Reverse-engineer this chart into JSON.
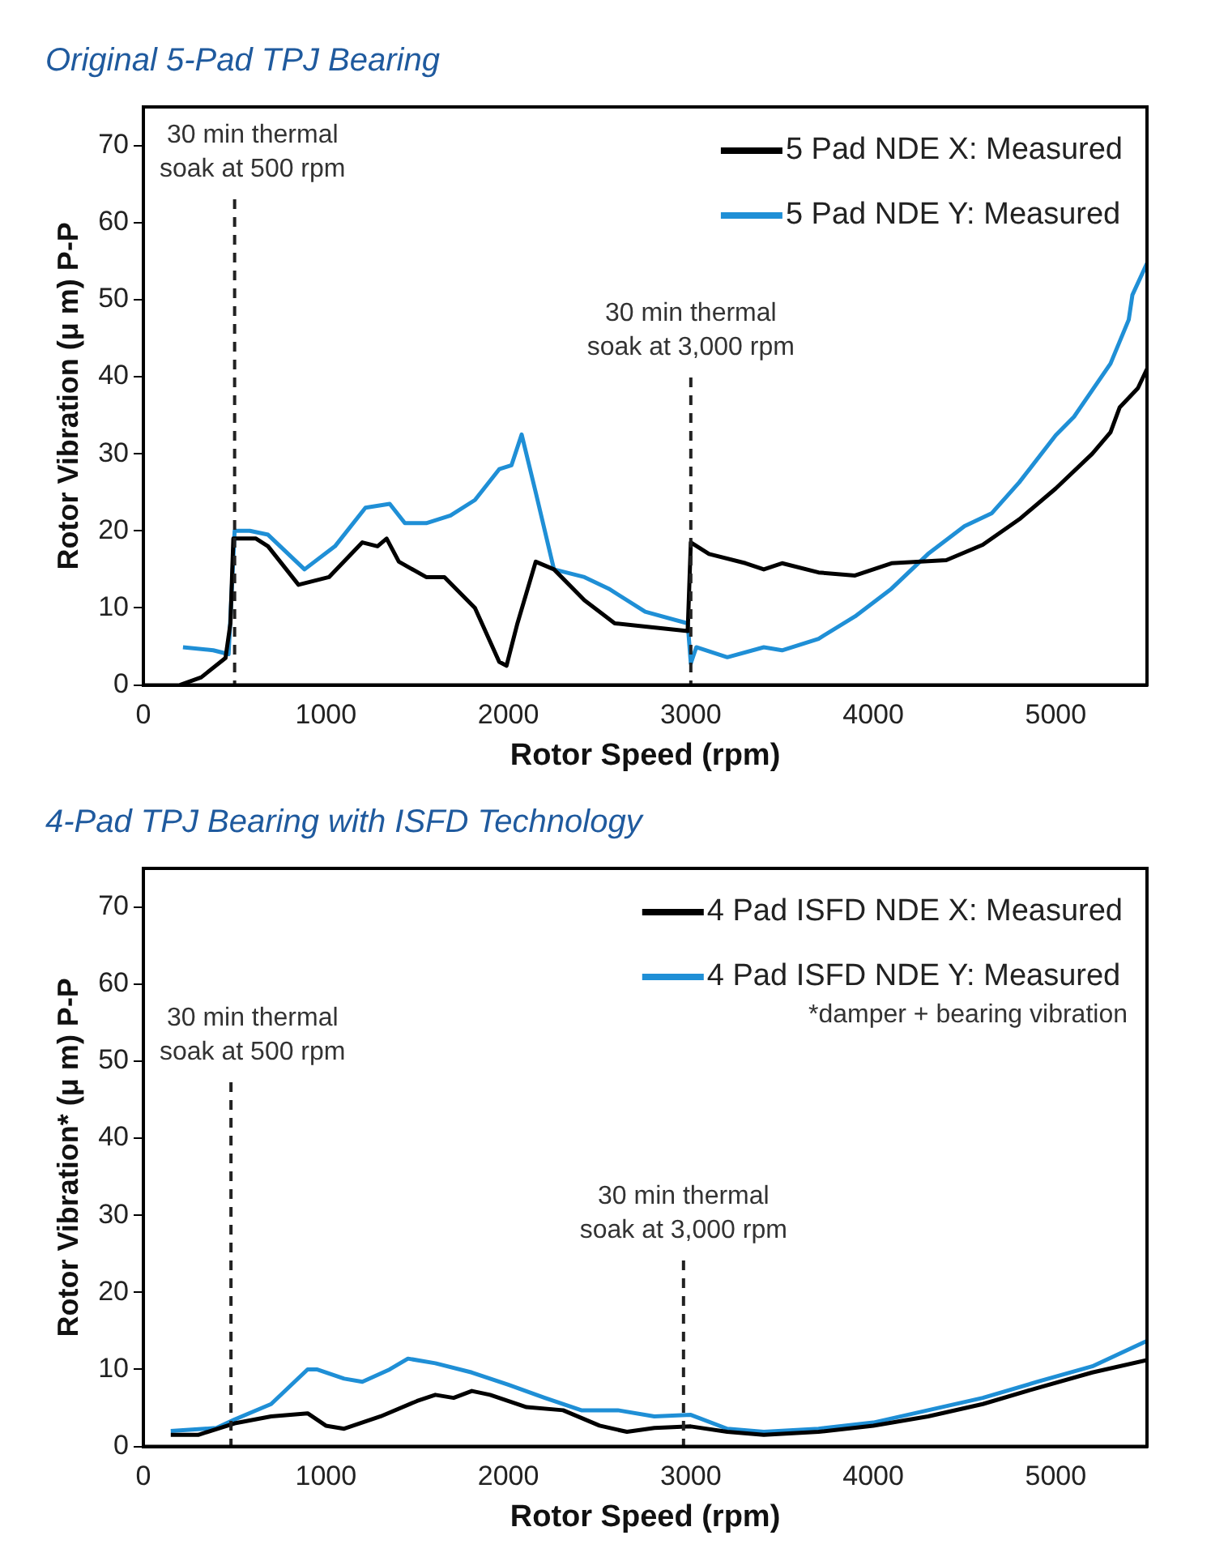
{
  "chart_data": [
    {
      "type": "line",
      "title": "Original 5-Pad TPJ Bearing",
      "xlabel": "Rotor Speed (rpm)",
      "ylabel": "Rotor Vibration (μ m) P-P",
      "xlim": [
        0,
        5500
      ],
      "xticks": [
        0,
        1000,
        2000,
        3000,
        4000,
        5000
      ],
      "ylim": [
        0,
        75
      ],
      "yticks": [
        0,
        10,
        20,
        30,
        40,
        50,
        60,
        70
      ],
      "grid": false,
      "legend": "top right",
      "marker": "none",
      "line_style": "solid",
      "ref_lines": [
        {
          "axis": "x",
          "value": 500,
          "label": "30 min thermal\nsoak at 500 rpm",
          "color": "#222222",
          "line_style": "dashed"
        },
        {
          "axis": "x",
          "value": 3000,
          "label": "30 min thermal\nsoak at 3,000 rpm",
          "color": "#222222",
          "line_style": "dashed"
        }
      ],
      "series": [
        {
          "name": "5 Pad NDE X: Measured",
          "color": "#000000",
          "x": [
            200,
            317,
            450,
            477,
            493,
            617,
            683,
            850,
            1017,
            1200,
            1283,
            1333,
            1400,
            1550,
            1650,
            1817,
            1950,
            1990,
            2050,
            2150,
            2250,
            2417,
            2583,
            2783,
            2983,
            3000,
            3100,
            3300,
            3400,
            3500,
            3700,
            3900,
            4100,
            4400,
            4600,
            4800,
            5000,
            5200,
            5300,
            5350,
            5450,
            5500
          ],
          "values": [
            0,
            1,
            3.5,
            8,
            19,
            19,
            18,
            13,
            14,
            18.5,
            18,
            19,
            16,
            14,
            14,
            10,
            3,
            2.5,
            8,
            16,
            15,
            11,
            8,
            7.5,
            7,
            18.5,
            17,
            15.8,
            15,
            15.8,
            14.6,
            14.2,
            15.8,
            16.2,
            18.2,
            21.5,
            25.5,
            30,
            32.8,
            36,
            38.5,
            41
          ]
        },
        {
          "name": "5 Pad NDE Y: Measured",
          "color": "#1f8fd6",
          "x": [
            217,
            383,
            467,
            500,
            583,
            683,
            883,
            1050,
            1217,
            1350,
            1433,
            1550,
            1683,
            1817,
            1950,
            2017,
            2073,
            2150,
            2250,
            2417,
            2550,
            2750,
            2983,
            3000,
            3030,
            3200,
            3400,
            3500,
            3700,
            3900,
            4100,
            4300,
            4500,
            4650,
            4800,
            5000,
            5100,
            5300,
            5400,
            5420,
            5500
          ],
          "values": [
            4.9,
            4.5,
            4,
            20,
            20,
            19.5,
            15,
            18,
            23,
            23.5,
            21,
            21,
            22,
            24,
            28,
            28.5,
            32.5,
            25,
            15,
            14,
            12.5,
            9.5,
            8,
            2.8,
            4.9,
            3.6,
            4.9,
            4.5,
            6,
            8.9,
            12.5,
            17,
            20.6,
            22.3,
            26.3,
            32.4,
            34.8,
            41.7,
            47.4,
            50.6,
            54.7
          ]
        }
      ]
    },
    {
      "type": "line",
      "title": "4-Pad TPJ Bearing with ISFD Technology",
      "xlabel": "Rotor Speed (rpm)",
      "ylabel": "Rotor Vibration* (μ m) P-P",
      "xlim": [
        0,
        5500
      ],
      "xticks": [
        0,
        1000,
        2000,
        3000,
        4000,
        5000
      ],
      "ylim": [
        0,
        75
      ],
      "yticks": [
        0,
        10,
        20,
        30,
        40,
        50,
        60,
        70
      ],
      "grid": false,
      "legend": "top right",
      "marker": "none",
      "line_style": "solid",
      "ref_lines": [
        {
          "axis": "x",
          "value": 480,
          "label": "30 min thermal\nsoak at 500 rpm",
          "color": "#222222",
          "line_style": "dashed"
        },
        {
          "axis": "x",
          "value": 2960,
          "label": "30 min thermal\nsoak at 3,000 rpm",
          "color": "#222222",
          "line_style": "dashed"
        }
      ],
      "annotations": [
        "*damper + bearing vibration"
      ],
      "series": [
        {
          "name": "4 Pad ISFD NDE X: Measured",
          "color": "#000000",
          "x": [
            150,
            300,
            500,
            700,
            900,
            1000,
            1100,
            1300,
            1500,
            1600,
            1700,
            1800,
            1900,
            2100,
            2300,
            2500,
            2650,
            2800,
            3000,
            3200,
            3400,
            3700,
            4000,
            4300,
            4600,
            4900,
            5200,
            5500
          ],
          "values": [
            1.5,
            1.5,
            3,
            3.9,
            4.3,
            2.7,
            2.3,
            3.9,
            5.9,
            6.7,
            6.3,
            7.2,
            6.7,
            5.1,
            4.7,
            2.7,
            1.9,
            2.4,
            2.6,
            1.9,
            1.5,
            1.9,
            2.7,
            3.9,
            5.5,
            7.6,
            9.6,
            11.2
          ]
        },
        {
          "name": "4 Pad ISFD NDE Y: Measured",
          "color": "#1f8fd6",
          "x": [
            150,
            400,
            500,
            700,
            900,
            950,
            1100,
            1200,
            1350,
            1450,
            1600,
            1800,
            2000,
            2200,
            2400,
            2600,
            2800,
            3000,
            3200,
            3400,
            3700,
            4000,
            4300,
            4600,
            4900,
            5200,
            5500
          ],
          "values": [
            2,
            2.4,
            3.5,
            5.5,
            10,
            10,
            8.8,
            8.4,
            10,
            11.4,
            10.8,
            9.6,
            8,
            6.3,
            4.7,
            4.7,
            3.9,
            4.1,
            2.3,
            1.9,
            2.3,
            3.1,
            4.7,
            6.3,
            8.4,
            10.4,
            13.7
          ]
        }
      ]
    }
  ]
}
